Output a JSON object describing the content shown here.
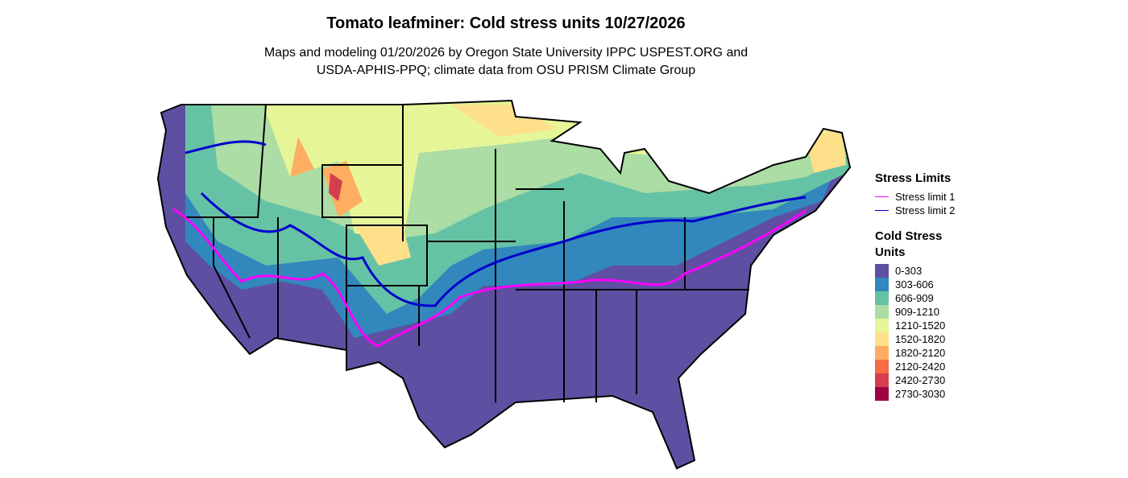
{
  "header": {
    "title": "Tomato leafminer: Cold stress units 10/27/2026",
    "subtitle_lines": [
      "Maps and modeling 01/20/2026 by Oregon State University IPPC USPEST.ORG and",
      "USDA-APHIS-PPQ; climate data from OSU PRISM Climate Group"
    ]
  },
  "legend": {
    "limits_title": "Stress Limits",
    "limits": [
      {
        "label": "Stress limit 1",
        "color": "#ff00ff"
      },
      {
        "label": "Stress limit 2",
        "color": "#0000cd"
      }
    ],
    "units_title": "Cold Stress Units",
    "units": [
      {
        "label": "0-303",
        "color": "#5e4fa2"
      },
      {
        "label": "303-606",
        "color": "#3288bd"
      },
      {
        "label": "606-909",
        "color": "#66c2a5"
      },
      {
        "label": "909-1210",
        "color": "#abdda4"
      },
      {
        "label": "1210-1520",
        "color": "#e6f598"
      },
      {
        "label": "1520-1820",
        "color": "#fee08b"
      },
      {
        "label": "1820-2120",
        "color": "#fdae61"
      },
      {
        "label": "2120-2420",
        "color": "#f46d43"
      },
      {
        "label": "2420-2730",
        "color": "#d53e4f"
      },
      {
        "label": "2730-3030",
        "color": "#9e0142"
      }
    ]
  }
}
